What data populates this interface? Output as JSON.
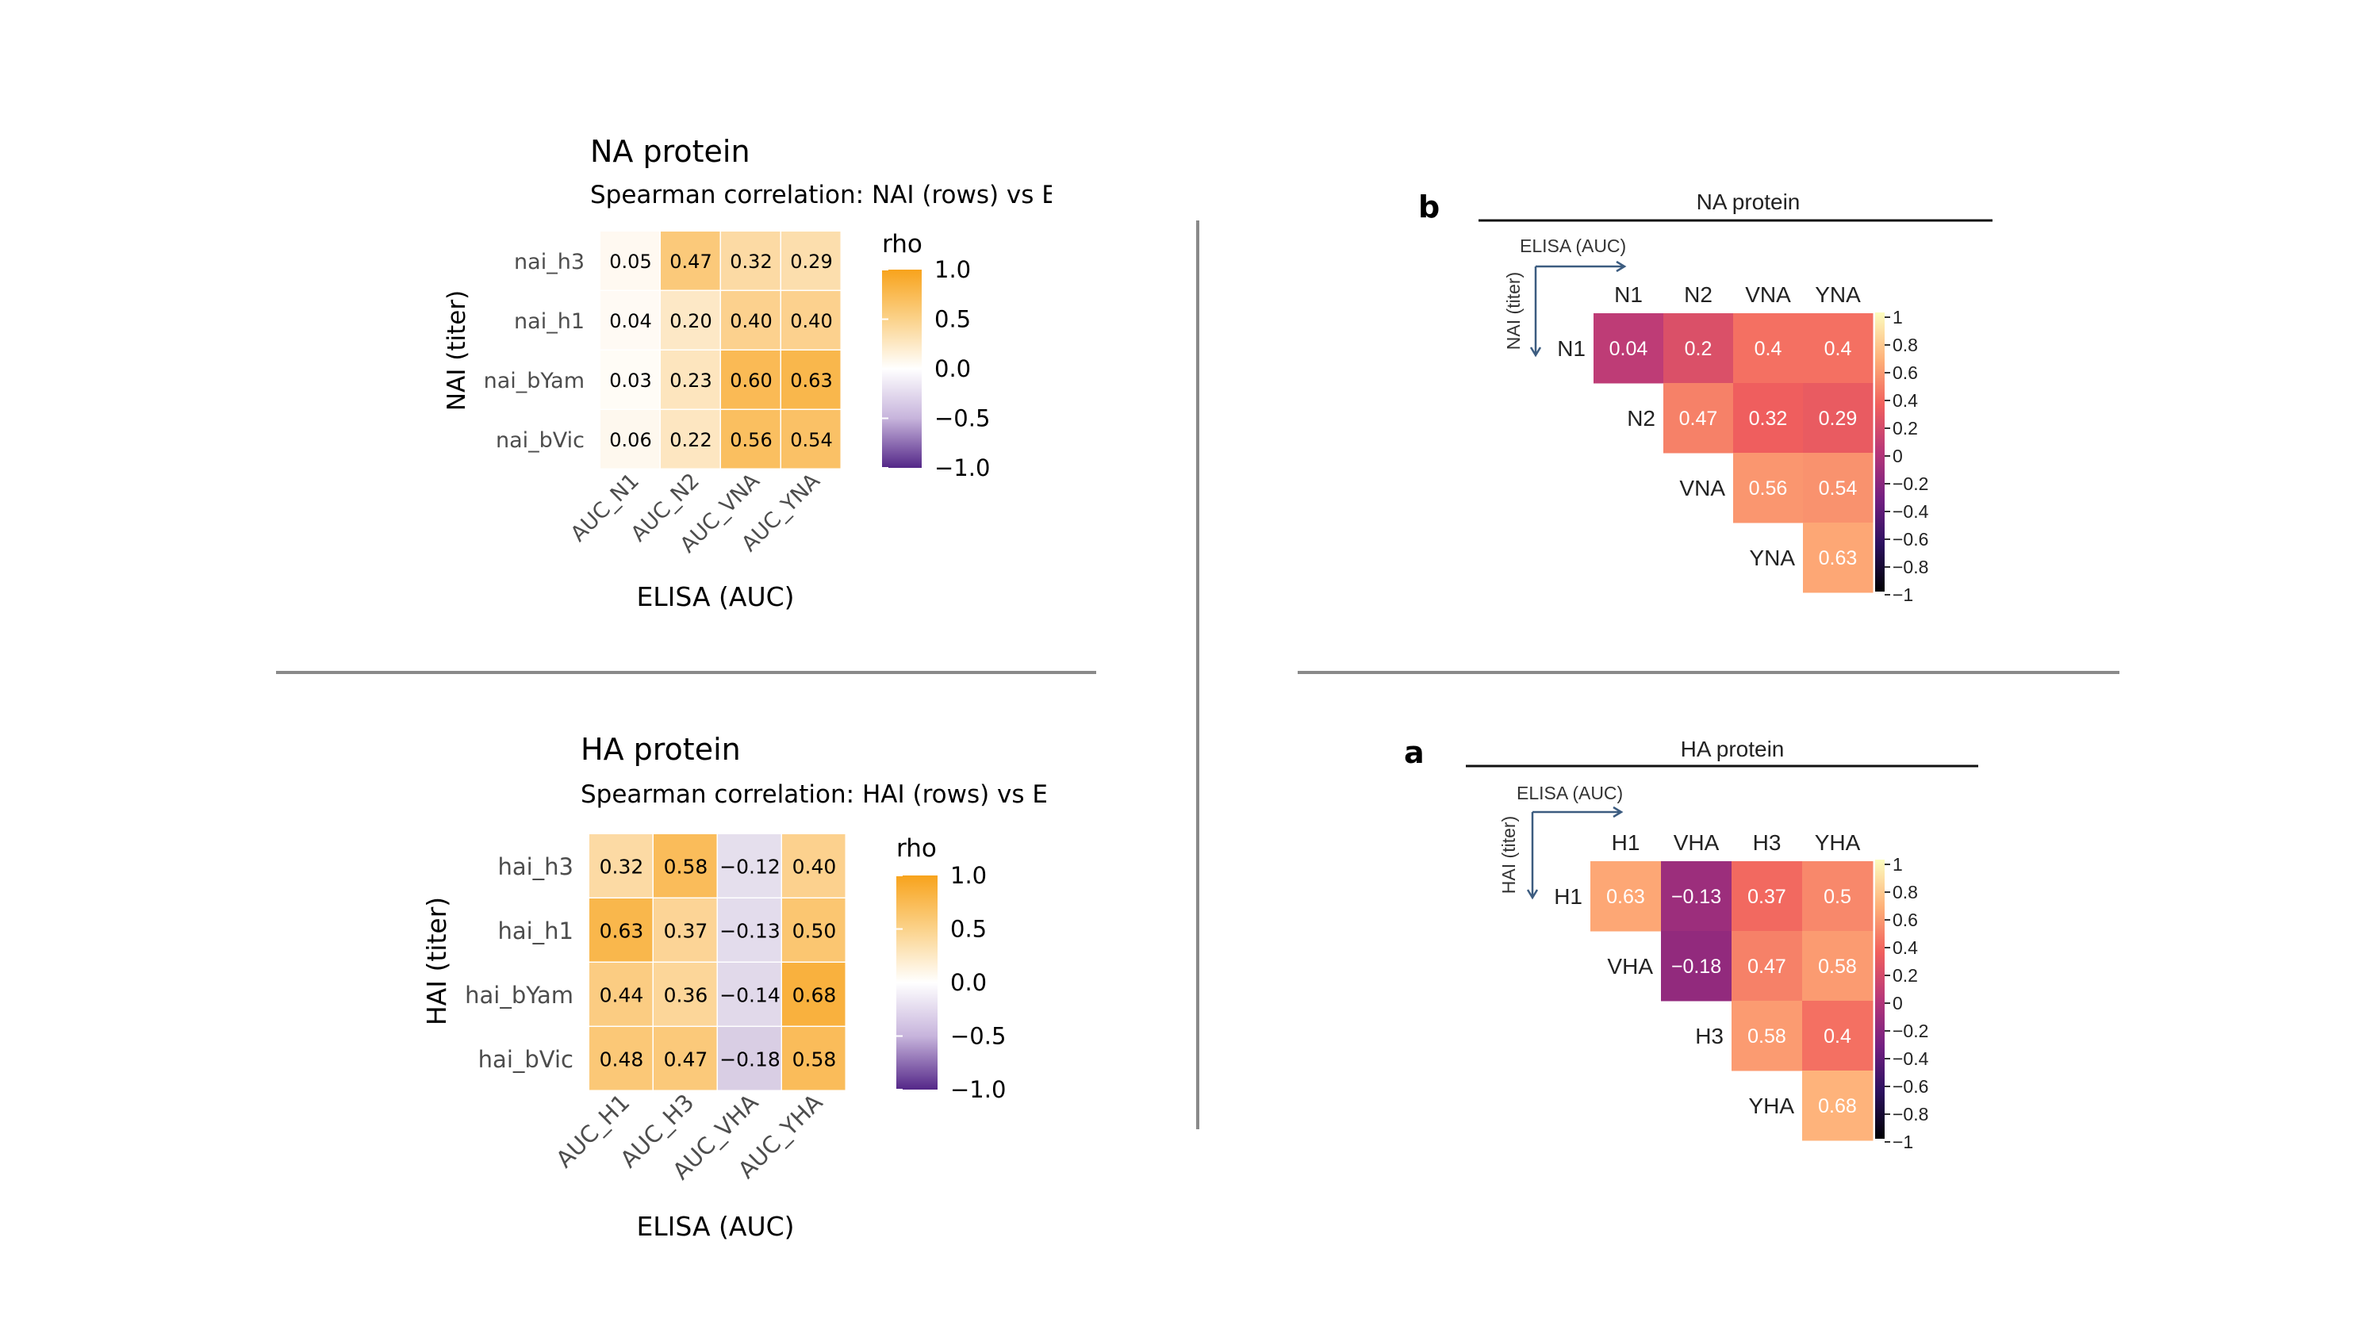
{
  "panels": {
    "na_left": {
      "title": "NA protein",
      "subtitle": "Spearman correlation: NAI (rows) vs E",
      "ylabel": "NAI (titer)",
      "xlabel": "ELISA (AUC)",
      "legend_title": "rho",
      "legend_ticks": [
        "1.0",
        "0.5",
        "0.0",
        "−0.5",
        "−1.0"
      ]
    },
    "ha_left": {
      "title": "HA protein",
      "subtitle": "Spearman correlation: HAI (rows) vs E",
      "ylabel": "HAI (titer)",
      "xlabel": "ELISA (AUC)",
      "legend_title": "rho",
      "legend_ticks": [
        "1.0",
        "0.5",
        "0.0",
        "−0.5",
        "−1.0"
      ]
    },
    "na_right": {
      "letter": "b",
      "title": "NA protein",
      "xlabel": "ELISA (AUC)",
      "ylabel": "NAI (titer)",
      "legend_ticks": [
        "1",
        "0.8",
        "0.6",
        "0.4",
        "0.2",
        "0",
        "−0.2",
        "−0.4",
        "−0.6",
        "−0.8",
        "−1"
      ]
    },
    "ha_right": {
      "letter": "a",
      "title": "HA protein",
      "xlabel": "ELISA (AUC)",
      "ylabel": "HAI (titer)",
      "legend_ticks": [
        "1",
        "0.8",
        "0.6",
        "0.4",
        "0.2",
        "0",
        "−0.2",
        "−0.4",
        "−0.6",
        "−0.8",
        "−1"
      ]
    }
  },
  "chart_data": [
    {
      "id": "na_left",
      "type": "heatmap",
      "title": "NA protein",
      "rows": [
        "nai_h3",
        "nai_h1",
        "nai_bYam",
        "nai_bVic"
      ],
      "columns": [
        "AUC_N1",
        "AUC_N2",
        "AUC_VNA",
        "AUC_YNA"
      ],
      "values": [
        [
          0.05,
          0.47,
          0.32,
          0.29
        ],
        [
          0.04,
          0.2,
          0.4,
          0.4
        ],
        [
          0.03,
          0.23,
          0.6,
          0.63
        ],
        [
          0.06,
          0.22,
          0.56,
          0.54
        ]
      ],
      "labels": [
        [
          "0.05",
          "0.47",
          "0.32",
          "0.29"
        ],
        [
          "0.04",
          "0.20",
          "0.40",
          "0.40"
        ],
        [
          "0.03",
          "0.23",
          "0.60",
          "0.63"
        ],
        [
          "0.06",
          "0.22",
          "0.56",
          "0.54"
        ]
      ],
      "scale": [
        -1,
        1
      ]
    },
    {
      "id": "ha_left",
      "type": "heatmap",
      "title": "HA protein",
      "rows": [
        "hai_h3",
        "hai_h1",
        "hai_bYam",
        "hai_bVic"
      ],
      "columns": [
        "AUC_H1",
        "AUC_H3",
        "AUC_VHA",
        "AUC_YHA"
      ],
      "values": [
        [
          0.32,
          0.58,
          -0.12,
          0.4
        ],
        [
          0.63,
          0.37,
          -0.13,
          0.5
        ],
        [
          0.44,
          0.36,
          -0.14,
          0.68
        ],
        [
          0.48,
          0.47,
          -0.18,
          0.58
        ]
      ],
      "labels": [
        [
          "0.32",
          "0.58",
          "−0.12",
          "0.40"
        ],
        [
          "0.63",
          "0.37",
          "−0.13",
          "0.50"
        ],
        [
          "0.44",
          "0.36",
          "−0.14",
          "0.68"
        ],
        [
          "0.48",
          "0.47",
          "−0.18",
          "0.58"
        ]
      ],
      "scale": [
        -1,
        1
      ]
    },
    {
      "id": "na_right",
      "type": "heatmap",
      "title": "NA protein",
      "rows": [
        "N1",
        "N2",
        "VNA",
        "YNA"
      ],
      "columns": [
        "N1",
        "N2",
        "VNA",
        "YNA"
      ],
      "values": [
        [
          0.04,
          0.2,
          0.4,
          0.4
        ],
        [
          null,
          0.47,
          0.32,
          0.29
        ],
        [
          null,
          null,
          0.56,
          0.54
        ],
        [
          null,
          null,
          null,
          0.63
        ]
      ],
      "labels": [
        [
          "0.04",
          "0.2",
          "0.4",
          "0.4"
        ],
        [
          null,
          "0.47",
          "0.32",
          "0.29"
        ],
        [
          null,
          null,
          "0.56",
          "0.54"
        ],
        [
          null,
          null,
          null,
          "0.63"
        ]
      ],
      "scale": [
        -1,
        1
      ]
    },
    {
      "id": "ha_right",
      "type": "heatmap",
      "title": "HA protein",
      "rows": [
        "H1",
        "VHA",
        "H3",
        "YHA"
      ],
      "columns": [
        "H1",
        "VHA",
        "H3",
        "YHA"
      ],
      "values": [
        [
          0.63,
          -0.13,
          0.37,
          0.5
        ],
        [
          null,
          -0.18,
          0.47,
          0.58
        ],
        [
          null,
          null,
          0.58,
          0.4
        ],
        [
          null,
          null,
          null,
          0.68
        ]
      ],
      "labels": [
        [
          "0.63",
          "−0.13",
          "0.37",
          "0.5"
        ],
        [
          null,
          "−0.18",
          "0.47",
          "0.58"
        ],
        [
          null,
          null,
          "0.58",
          "0.4"
        ],
        [
          null,
          null,
          null,
          "0.68"
        ]
      ],
      "scale": [
        -1,
        1
      ]
    }
  ],
  "colors": {
    "divider": "#8a8a8a",
    "left_high": "#f8a31c",
    "left_mid": "#ffffff",
    "left_low": "#542788",
    "right_scale": [
      "#000004",
      "#2c115f",
      "#721f81",
      "#b73779",
      "#f1605d",
      "#feb078",
      "#fcfdbf"
    ]
  }
}
